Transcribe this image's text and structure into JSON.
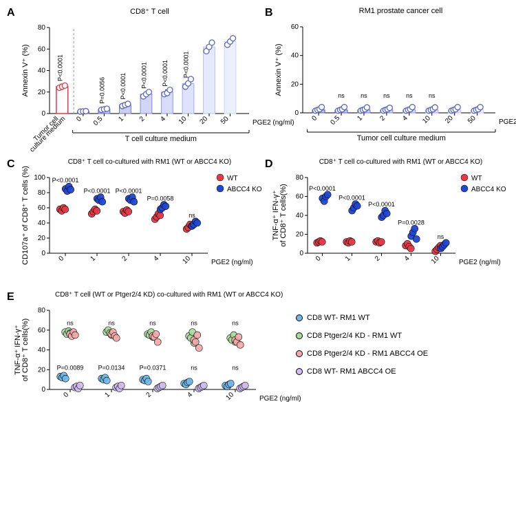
{
  "panelA": {
    "label": "A",
    "title": "CD8⁺ T cell",
    "ylabel": "Annexin V⁺ (%)",
    "ylim": [
      0,
      80
    ],
    "ytick_step": 20,
    "first_group_label": "Tumor cell\nculture medium",
    "second_group_label": "T cell culture medium",
    "xlabel": "PGE2 (ng/ml)",
    "categories": [
      "0",
      "0.5",
      "1",
      "2",
      "4",
      "10",
      "20",
      "50"
    ],
    "first_bar": {
      "mean": 25,
      "color": "#e63946",
      "fill": "#ffffff",
      "points": [
        24,
        25,
        26
      ],
      "pval": "P<0.0001"
    },
    "bars": [
      {
        "mean": 2,
        "fill": "#4a55b5",
        "points": [
          1.8,
          2,
          2.2
        ],
        "pval": ""
      },
      {
        "mean": 4,
        "fill": "#5b66c2",
        "points": [
          3.5,
          4,
          4.5
        ],
        "pval": "P=0.0056"
      },
      {
        "mean": 8,
        "fill": "#6c78cf",
        "points": [
          7,
          8,
          9
        ],
        "pval": "P<0.0001"
      },
      {
        "mean": 18,
        "fill": "#7d8adc",
        "points": [
          16,
          18,
          20
        ],
        "pval": "P<0.0001"
      },
      {
        "mean": 20,
        "fill": "#8e9be8",
        "points": [
          18,
          19,
          22
        ],
        "pval": "P<0.0001"
      },
      {
        "mean": 28,
        "fill": "#a0adf0",
        "points": [
          25,
          28,
          32
        ],
        "pval": "P<0.0001"
      },
      {
        "mean": 62,
        "fill": "#b5c1f5",
        "points": [
          58,
          62,
          66
        ],
        "pval": ""
      },
      {
        "mean": 67,
        "fill": "#c9d4fa",
        "points": [
          64,
          67,
          70
        ],
        "pval": ""
      }
    ],
    "point_stroke": "#5b66c2",
    "first_point_stroke": "#e63946"
  },
  "panelB": {
    "label": "B",
    "title": "RM1 prostate cancer cell",
    "ylabel": "Annexin V⁺ (%)",
    "ylim": [
      0,
      60
    ],
    "ytick_step": 20,
    "group_label": "Tumor cell culture medium",
    "xlabel": "PGE2 (ng/ml)",
    "categories": [
      "0",
      "0.5",
      "1",
      "2",
      "4",
      "10",
      "20",
      "50"
    ],
    "bars": [
      {
        "mean": 2,
        "fill": "#4a55b5",
        "points": [
          1.5,
          2,
          2.5,
          4
        ],
        "pval": ""
      },
      {
        "mean": 2,
        "fill": "#5b66c2",
        "points": [
          1.5,
          2,
          2.5,
          4
        ],
        "pval": "ns"
      },
      {
        "mean": 2,
        "fill": "#6c78cf",
        "points": [
          1.5,
          2,
          2.5,
          3.8
        ],
        "pval": "ns"
      },
      {
        "mean": 2,
        "fill": "#7d8adc",
        "points": [
          1.5,
          2,
          2.5,
          3.5
        ],
        "pval": "ns"
      },
      {
        "mean": 2,
        "fill": "#8e9be8",
        "points": [
          1.5,
          2,
          2.5,
          4
        ],
        "pval": "ns"
      },
      {
        "mean": 2,
        "fill": "#a0adf0",
        "points": [
          1.5,
          2,
          2.5,
          3.8
        ],
        "pval": "ns"
      },
      {
        "mean": 2,
        "fill": "#b5c1f5",
        "points": [
          1.5,
          2,
          2.5,
          4
        ],
        "pval": ""
      },
      {
        "mean": 2,
        "fill": "#c9d4fa",
        "points": [
          1.5,
          2,
          2.5,
          4
        ],
        "pval": ""
      }
    ],
    "point_stroke": "#5b66c2"
  },
  "panelC": {
    "label": "C",
    "title": "CD8⁺ T cell co-cultured with RM1 (WT or ABCC4 KO)",
    "ylabel": "CD107a⁺ of CD8⁺ T cells (%)",
    "ylim": [
      0,
      100
    ],
    "ytick_step": 20,
    "xlabel": "PGE2 (ng/ml)",
    "categories": [
      "0",
      "1",
      "2",
      "4",
      "10"
    ],
    "series": [
      {
        "name": "WT",
        "color": "#e63946",
        "points": [
          [
            58,
            56,
            60,
            58
          ],
          [
            52,
            55,
            58,
            56
          ],
          [
            55,
            53,
            57,
            55
          ],
          [
            45,
            48,
            52,
            50
          ],
          [
            32,
            34,
            38,
            36
          ]
        ]
      },
      {
        "name": "ABCC4 KO",
        "color": "#1f47d6",
        "points": [
          [
            85,
            82,
            88,
            84
          ],
          [
            72,
            70,
            74,
            68
          ],
          [
            72,
            70,
            74,
            68
          ],
          [
            58,
            60,
            64,
            62
          ],
          [
            36,
            38,
            42,
            40
          ]
        ]
      }
    ],
    "pvals": [
      "P<0.0001",
      "P<0.0001",
      "P<0.0001",
      "P=0.0058",
      "ns"
    ]
  },
  "panelD": {
    "label": "D",
    "title": "CD8⁺ T cell co-cultured with RM1 (WT or ABCC4 KO)",
    "ylabel": "TNF-α⁺ IFN-γ⁺\nof CD8⁺ T cells(%)",
    "ylim": [
      0,
      80
    ],
    "ytick_step": 20,
    "xlabel": "PGE2 (ng/ml)",
    "categories": [
      "0",
      "1",
      "2",
      "4",
      "10"
    ],
    "series": [
      {
        "name": "WT",
        "color": "#e63946",
        "points": [
          [
            11,
            12,
            13,
            12
          ],
          [
            12,
            11,
            13,
            12
          ],
          [
            12,
            13,
            11,
            12
          ],
          [
            8,
            10,
            7,
            5
          ],
          [
            2,
            4,
            6,
            8
          ]
        ]
      },
      {
        "name": "ABCC4 KO",
        "color": "#1f47d6",
        "points": [
          [
            58,
            55,
            60,
            62
          ],
          [
            45,
            48,
            52,
            50
          ],
          [
            38,
            40,
            45,
            42
          ],
          [
            18,
            22,
            26,
            15
          ],
          [
            5,
            7,
            9,
            11
          ]
        ]
      }
    ],
    "pvals": [
      "P<0.0001",
      "P<0.0001",
      "P<0.0001",
      "P=0.0028",
      "ns"
    ]
  },
  "panelE": {
    "label": "E",
    "title": "CD8⁺ T cell (WT or Ptger2/4 KD) co-cultured with RM1 (WT or ABCC4 KO)",
    "ylabel": "TNF-α⁺ IFN-γ⁺\nof CD8⁺ T cells(%)",
    "ylim": [
      0,
      80
    ],
    "ytick_step": 20,
    "xlabel": "PGE2 (ng/ml)",
    "categories": [
      "0",
      "1",
      "2",
      "4",
      "10"
    ],
    "series": [
      {
        "name": "CD8 WT- RM1 WT",
        "color": "#6eb7e8",
        "points": [
          [
            13,
            12,
            14,
            11
          ],
          [
            11,
            10,
            12,
            9
          ],
          [
            10,
            9,
            11,
            8
          ],
          [
            6,
            5,
            7,
            8
          ],
          [
            4,
            3,
            5,
            6
          ]
        ]
      },
      {
        "name": "CD8 Ptger2/4 KD - RM1 WT",
        "color": "#a8d99a",
        "points": [
          [
            58,
            56,
            59,
            57
          ],
          [
            58,
            60,
            57,
            55
          ],
          [
            56,
            55,
            58,
            53
          ],
          [
            54,
            52,
            58,
            47
          ],
          [
            52,
            50,
            55,
            48
          ]
        ]
      },
      {
        "name": "CD8 Ptger2/4 KD - RM1 ABCC4 OE",
        "color": "#f4a8a8",
        "points": [
          [
            56,
            54,
            58,
            55
          ],
          [
            56,
            58,
            54,
            52
          ],
          [
            54,
            53,
            56,
            48
          ],
          [
            50,
            48,
            55,
            42
          ],
          [
            50,
            48,
            53,
            45
          ]
        ]
      },
      {
        "name": "CD8 WT- RM1 ABCC4 OE",
        "color": "#cdbdf0",
        "points": [
          [
            2,
            3,
            1,
            4
          ],
          [
            2,
            3,
            1,
            4
          ],
          [
            1,
            2,
            3,
            4
          ],
          [
            1,
            2,
            3,
            4
          ],
          [
            1,
            2,
            3,
            4
          ]
        ]
      }
    ],
    "top_pvals": [
      "ns",
      "ns",
      "ns",
      "ns",
      "ns"
    ],
    "bottom_pvals": [
      "P=0.0089",
      "P=0.0134",
      "P=0.0371",
      "ns",
      "ns"
    ]
  }
}
